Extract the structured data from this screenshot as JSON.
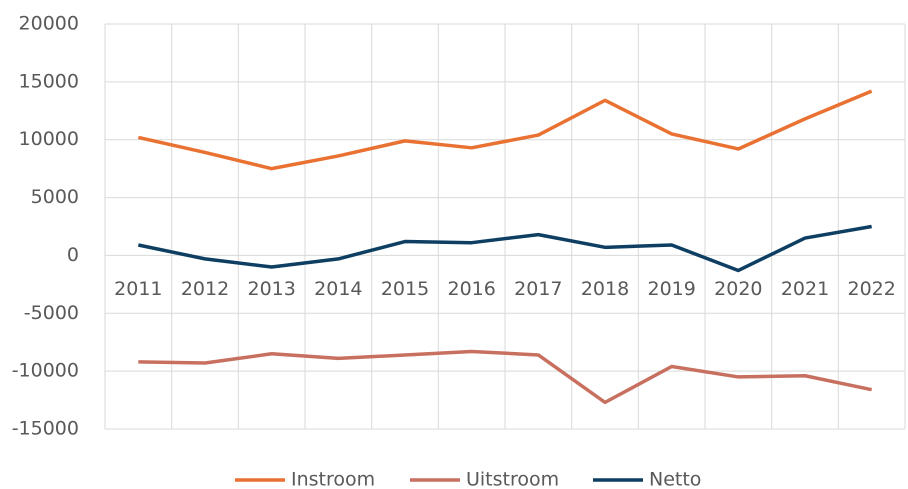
{
  "chart_data": {
    "type": "line",
    "categories": [
      "2011",
      "2012",
      "2013",
      "2014",
      "2015",
      "2016",
      "2017",
      "2018",
      "2019",
      "2020",
      "2021",
      "2022"
    ],
    "series": [
      {
        "name": "Instroom",
        "color": "#e97132",
        "values": [
          10200,
          8900,
          7500,
          8600,
          9900,
          9300,
          10400,
          13400,
          10500,
          9200,
          11800,
          14200
        ]
      },
      {
        "name": "Uitstroom",
        "color": "#c8705f",
        "values": [
          -9200,
          -9300,
          -8500,
          -8900,
          -8600,
          -8300,
          -8600,
          -12700,
          -9600,
          -10500,
          -10400,
          -11600
        ]
      },
      {
        "name": "Netto",
        "color": "#0e3f63",
        "values": [
          900,
          -300,
          -1000,
          -300,
          1200,
          1100,
          1800,
          700,
          900,
          -1300,
          1500,
          2500
        ]
      }
    ],
    "ylim": [
      -15000,
      20000
    ],
    "yticks": [
      -15000,
      -10000,
      -5000,
      0,
      5000,
      10000,
      15000,
      20000
    ],
    "grid": true,
    "legend": "bottom"
  }
}
